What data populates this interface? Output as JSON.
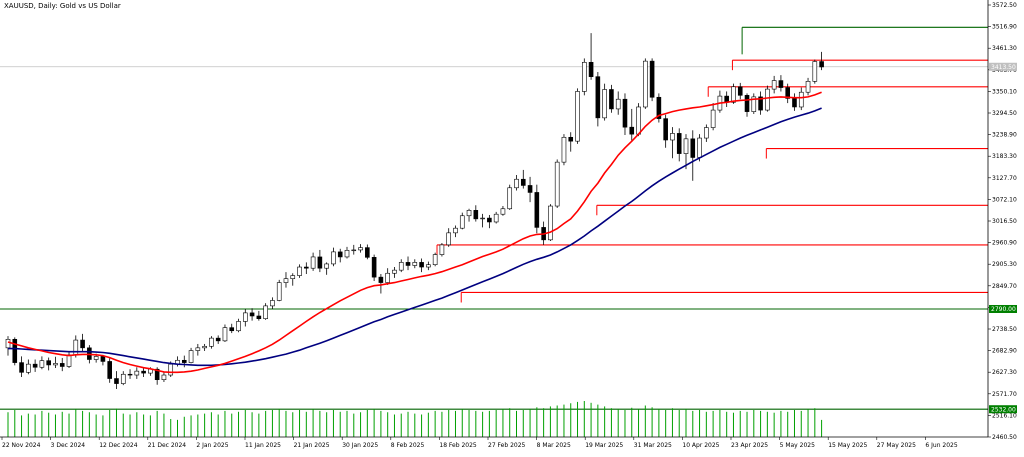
{
  "header": {
    "title": "XAUUSD, Daily:  Gold vs US Dollar"
  },
  "chart_data": {
    "type": "candlestick",
    "symbol": "XAUUSD",
    "timeframe": "Daily",
    "description": "Gold vs US Dollar",
    "colors": {
      "background": "#ffffff",
      "candle_up": "#ffffff",
      "candle_down": "#000000",
      "candle_outline": "#000000",
      "ma_fast": "#ff0000",
      "ma_slow": "#000080",
      "resistance_lines": "#ff0000",
      "support_lines": "#006400",
      "volume": "#00a000",
      "current_price_line": "#c0c0c0",
      "price_label_bg": "#008000"
    },
    "ylim": [
      2460.5,
      3572.5
    ],
    "y_ticks": [
      "3572.50",
      "3516.90",
      "3461.30",
      "3405.70",
      "3350.10",
      "3294.50",
      "3238.90",
      "3183.30",
      "3127.70",
      "3072.10",
      "3016.50",
      "2960.90",
      "2905.30",
      "2849.70",
      "2794.10",
      "2738.50",
      "2682.90",
      "2627.30",
      "2571.70",
      "2516.10",
      "2460.50"
    ],
    "x_tick_labels": [
      "22 Nov 2024",
      "3 Dec 2024",
      "12 Dec 2024",
      "21 Dec 2024",
      "2 Jan 2025",
      "11 Jan 2025",
      "21 Jan 2025",
      "30 Jan 2025",
      "8 Feb 2025",
      "18 Feb 2025",
      "27 Feb 2025",
      "8 Mar 2025",
      "19 Mar 2025",
      "31 Mar 2025",
      "10 Apr 2025",
      "23 Apr 2025",
      "5 May 2025",
      "15 May 2025",
      "27 May 2025",
      "6 Jun 2025"
    ],
    "horizontal_lines": [
      {
        "kind": "support",
        "price": 3515.0,
        "x_from": "23 Apr 2025",
        "x_to": "end"
      },
      {
        "kind": "resistance",
        "price": 3430.5,
        "x_from": "21 Apr 2025",
        "x_to": "end"
      },
      {
        "kind": "resistance",
        "price": 3362.0,
        "x_from": "16 Apr 2025",
        "x_to": "end"
      },
      {
        "kind": "resistance",
        "price": 3203.0,
        "x_from": "28 Apr 2025",
        "x_to": "end"
      },
      {
        "kind": "resistance",
        "price": 3057.0,
        "x_from": "24 Mar 2025",
        "x_to": "end"
      },
      {
        "kind": "resistance",
        "price": 2955.0,
        "x_from": "19 Feb 2025",
        "x_to": "end"
      },
      {
        "kind": "resistance",
        "price": 2832.5,
        "x_from": "24 Feb 2025",
        "x_to": "end"
      },
      {
        "kind": "support",
        "price": 2790.0,
        "x_from": "start",
        "x_to": "end",
        "label": "2790.00"
      },
      {
        "kind": "support",
        "price": 2532.0,
        "x_from": "start",
        "x_to": "end",
        "label": "2532.00"
      }
    ],
    "current_price": {
      "price": 3413.5,
      "label": "3413.50"
    },
    "ohlc": [
      [
        2690,
        2720,
        2670,
        2712
      ],
      [
        2712,
        2717,
        2645,
        2652
      ],
      [
        2652,
        2668,
        2615,
        2627
      ],
      [
        2627,
        2660,
        2622,
        2648
      ],
      [
        2648,
        2660,
        2628,
        2640
      ],
      [
        2640,
        2668,
        2635,
        2657
      ],
      [
        2657,
        2665,
        2632,
        2646
      ],
      [
        2646,
        2667,
        2638,
        2650
      ],
      [
        2650,
        2664,
        2630,
        2642
      ],
      [
        2642,
        2680,
        2638,
        2672
      ],
      [
        2672,
        2722,
        2665,
        2710
      ],
      [
        2710,
        2726,
        2680,
        2690
      ],
      [
        2690,
        2697,
        2650,
        2660
      ],
      [
        2660,
        2675,
        2652,
        2668
      ],
      [
        2668,
        2672,
        2645,
        2655
      ],
      [
        2655,
        2665,
        2600,
        2611
      ],
      [
        2611,
        2630,
        2584,
        2598
      ],
      [
        2598,
        2630,
        2594,
        2622
      ],
      [
        2622,
        2635,
        2610,
        2620
      ],
      [
        2620,
        2640,
        2610,
        2630
      ],
      [
        2630,
        2638,
        2615,
        2625
      ],
      [
        2625,
        2640,
        2618,
        2635
      ],
      [
        2635,
        2640,
        2595,
        2608
      ],
      [
        2608,
        2628,
        2602,
        2620
      ],
      [
        2620,
        2655,
        2615,
        2648
      ],
      [
        2648,
        2668,
        2642,
        2658
      ],
      [
        2658,
        2670,
        2640,
        2652
      ],
      [
        2652,
        2690,
        2650,
        2683
      ],
      [
        2683,
        2700,
        2670,
        2690
      ],
      [
        2690,
        2700,
        2682,
        2694
      ],
      [
        2694,
        2720,
        2688,
        2715
      ],
      [
        2715,
        2722,
        2700,
        2708
      ],
      [
        2708,
        2750,
        2705,
        2742
      ],
      [
        2742,
        2752,
        2728,
        2734
      ],
      [
        2734,
        2765,
        2730,
        2758
      ],
      [
        2758,
        2790,
        2745,
        2780
      ],
      [
        2780,
        2792,
        2760,
        2772
      ],
      [
        2772,
        2785,
        2760,
        2765
      ],
      [
        2765,
        2805,
        2762,
        2798
      ],
      [
        2798,
        2820,
        2790,
        2812
      ],
      [
        2812,
        2865,
        2810,
        2858
      ],
      [
        2858,
        2885,
        2845,
        2868
      ],
      [
        2868,
        2882,
        2850,
        2876
      ],
      [
        2876,
        2905,
        2870,
        2898
      ],
      [
        2898,
        2910,
        2880,
        2895
      ],
      [
        2895,
        2935,
        2888,
        2924
      ],
      [
        2924,
        2942,
        2885,
        2895
      ],
      [
        2895,
        2910,
        2878,
        2906
      ],
      [
        2906,
        2948,
        2900,
        2937
      ],
      [
        2937,
        2945,
        2910,
        2924
      ],
      [
        2924,
        2950,
        2920,
        2941
      ],
      [
        2941,
        2955,
        2930,
        2942
      ],
      [
        2942,
        2957,
        2935,
        2948
      ],
      [
        2948,
        2956,
        2918,
        2923
      ],
      [
        2923,
        2930,
        2862,
        2872
      ],
      [
        2872,
        2880,
        2830,
        2858
      ],
      [
        2858,
        2895,
        2852,
        2882
      ],
      [
        2882,
        2898,
        2870,
        2890
      ],
      [
        2890,
        2918,
        2885,
        2910
      ],
      [
        2910,
        2925,
        2890,
        2902
      ],
      [
        2902,
        2918,
        2895,
        2910
      ],
      [
        2910,
        2920,
        2885,
        2898
      ],
      [
        2898,
        2912,
        2890,
        2904
      ],
      [
        2904,
        2935,
        2900,
        2930
      ],
      [
        2930,
        2960,
        2925,
        2955
      ],
      [
        2955,
        2998,
        2950,
        2986
      ],
      [
        2986,
        3005,
        2975,
        2998
      ],
      [
        2998,
        3038,
        2995,
        3030
      ],
      [
        3030,
        3048,
        3015,
        3044
      ],
      [
        3044,
        3057,
        3015,
        3022
      ],
      [
        3022,
        3035,
        3000,
        3024
      ],
      [
        3024,
        3032,
        2998,
        3014
      ],
      [
        3014,
        3040,
        3010,
        3034
      ],
      [
        3034,
        3055,
        3030,
        3048
      ],
      [
        3048,
        3110,
        3045,
        3102
      ],
      [
        3102,
        3135,
        3095,
        3124
      ],
      [
        3124,
        3148,
        3100,
        3108
      ],
      [
        3108,
        3130,
        3065,
        3090
      ],
      [
        3090,
        3110,
        2985,
        3000
      ],
      [
        3000,
        3015,
        2955,
        2968
      ],
      [
        2968,
        3060,
        2965,
        3055
      ],
      [
        3055,
        3175,
        3050,
        3168
      ],
      [
        3168,
        3240,
        3160,
        3232
      ],
      [
        3232,
        3245,
        3195,
        3222
      ],
      [
        3222,
        3358,
        3215,
        3350
      ],
      [
        3350,
        3435,
        3340,
        3425
      ],
      [
        3425,
        3500,
        3380,
        3388
      ],
      [
        3388,
        3400,
        3260,
        3282
      ],
      [
        3282,
        3370,
        3275,
        3355
      ],
      [
        3355,
        3367,
        3295,
        3305
      ],
      [
        3305,
        3350,
        3290,
        3330
      ],
      [
        3330,
        3345,
        3238,
        3258
      ],
      [
        3258,
        3305,
        3220,
        3240
      ],
      [
        3240,
        3320,
        3235,
        3310
      ],
      [
        3310,
        3435,
        3305,
        3428
      ],
      [
        3428,
        3435,
        3325,
        3335
      ],
      [
        3335,
        3345,
        3270,
        3280
      ],
      [
        3280,
        3290,
        3205,
        3225
      ],
      [
        3225,
        3258,
        3178,
        3242
      ],
      [
        3242,
        3255,
        3170,
        3190
      ],
      [
        3190,
        3240,
        3150,
        3228
      ],
      [
        3228,
        3250,
        3120,
        3180
      ],
      [
        3180,
        3240,
        3170,
        3230
      ],
      [
        3230,
        3265,
        3220,
        3257
      ],
      [
        3257,
        3320,
        3250,
        3302
      ],
      [
        3302,
        3352,
        3295,
        3338
      ],
      [
        3338,
        3350,
        3310,
        3322
      ],
      [
        3322,
        3370,
        3318,
        3362
      ],
      [
        3362,
        3372,
        3330,
        3340
      ],
      [
        3340,
        3345,
        3285,
        3298
      ],
      [
        3298,
        3345,
        3292,
        3336
      ],
      [
        3336,
        3350,
        3290,
        3302
      ],
      [
        3302,
        3365,
        3298,
        3356
      ],
      [
        3356,
        3390,
        3345,
        3378
      ],
      [
        3378,
        3392,
        3350,
        3360
      ],
      [
        3360,
        3370,
        3320,
        3332
      ],
      [
        3332,
        3345,
        3300,
        3310
      ],
      [
        3310,
        3360,
        3302,
        3348
      ],
      [
        3348,
        3385,
        3340,
        3376
      ],
      [
        3376,
        3432,
        3370,
        3427
      ],
      [
        3427,
        3452,
        3405,
        3413
      ]
    ],
    "ma_fast": [
      2705,
      2700,
      2695,
      2690,
      2686,
      2682,
      2678,
      2675,
      2672,
      2670,
      2672,
      2673,
      2673,
      2672,
      2670,
      2665,
      2658,
      2652,
      2647,
      2643,
      2639,
      2636,
      2632,
      2628,
      2627,
      2627,
      2628,
      2630,
      2633,
      2637,
      2641,
      2645,
      2650,
      2656,
      2662,
      2668,
      2675,
      2682,
      2690,
      2699,
      2710,
      2722,
      2734,
      2746,
      2758,
      2770,
      2781,
      2791,
      2801,
      2811,
      2820,
      2829,
      2838,
      2845,
      2850,
      2852,
      2855,
      2858,
      2862,
      2866,
      2870,
      2874,
      2877,
      2881,
      2886,
      2892,
      2898,
      2904,
      2911,
      2918,
      2925,
      2931,
      2937,
      2944,
      2953,
      2962,
      2971,
      2978,
      2982,
      2983,
      2988,
      2997,
      3010,
      3022,
      3042,
      3066,
      3093,
      3114,
      3140,
      3162,
      3186,
      3205,
      3222,
      3240,
      3260,
      3276,
      3288,
      3293,
      3298,
      3302,
      3305,
      3308,
      3310,
      3313,
      3316,
      3320,
      3322,
      3325,
      3327,
      3328,
      3330,
      3331,
      3333,
      3335,
      3336,
      3335,
      3334,
      3334,
      3336,
      3341,
      3348
    ],
    "ma_slow": [
      2688,
      2688,
      2687,
      2686,
      2685,
      2684,
      2683,
      2682,
      2681,
      2680,
      2680,
      2680,
      2680,
      2679,
      2678,
      2676,
      2673,
      2670,
      2667,
      2664,
      2661,
      2658,
      2655,
      2652,
      2650,
      2648,
      2647,
      2646,
      2645,
      2645,
      2645,
      2646,
      2647,
      2649,
      2651,
      2653,
      2656,
      2659,
      2662,
      2666,
      2670,
      2674,
      2679,
      2684,
      2690,
      2696,
      2702,
      2708,
      2715,
      2722,
      2729,
      2736,
      2743,
      2750,
      2757,
      2763,
      2770,
      2776,
      2782,
      2788,
      2794,
      2800,
      2806,
      2812,
      2818,
      2825,
      2832,
      2839,
      2846,
      2853,
      2860,
      2867,
      2874,
      2881,
      2889,
      2897,
      2905,
      2912,
      2918,
      2923,
      2929,
      2937,
      2946,
      2955,
      2966,
      2978,
      2991,
      3003,
      3016,
      3029,
      3042,
      3055,
      3067,
      3080,
      3094,
      3107,
      3119,
      3130,
      3140,
      3150,
      3160,
      3170,
      3179,
      3188,
      3197,
      3206,
      3214,
      3222,
      3230,
      3237,
      3244,
      3251,
      3258,
      3265,
      3272,
      3278,
      3284,
      3289,
      3294,
      3300,
      3307
    ],
    "volume": [
      55,
      60,
      48,
      52,
      50,
      58,
      54,
      50,
      56,
      52,
      62,
      58,
      55,
      50,
      48,
      60,
      63,
      52,
      50,
      55,
      50,
      48,
      58,
      52,
      40,
      38,
      45,
      48,
      50,
      52,
      55,
      50,
      58,
      52,
      56,
      60,
      55,
      52,
      58,
      60,
      62,
      58,
      55,
      60,
      56,
      62,
      58,
      55,
      60,
      56,
      58,
      52,
      55,
      60,
      62,
      58,
      55,
      50,
      52,
      56,
      52,
      50,
      54,
      58,
      56,
      60,
      58,
      62,
      60,
      58,
      56,
      58,
      60,
      62,
      64,
      58,
      60,
      62,
      66,
      64,
      68,
      70,
      72,
      75,
      78,
      80,
      76,
      72,
      68,
      64,
      62,
      60,
      65,
      62,
      70,
      66,
      62,
      60,
      64,
      60,
      62,
      58,
      60,
      56,
      58,
      60,
      56,
      54,
      58,
      56,
      60,
      58,
      56,
      54,
      58,
      56,
      60,
      58,
      62,
      64,
      38
    ]
  }
}
